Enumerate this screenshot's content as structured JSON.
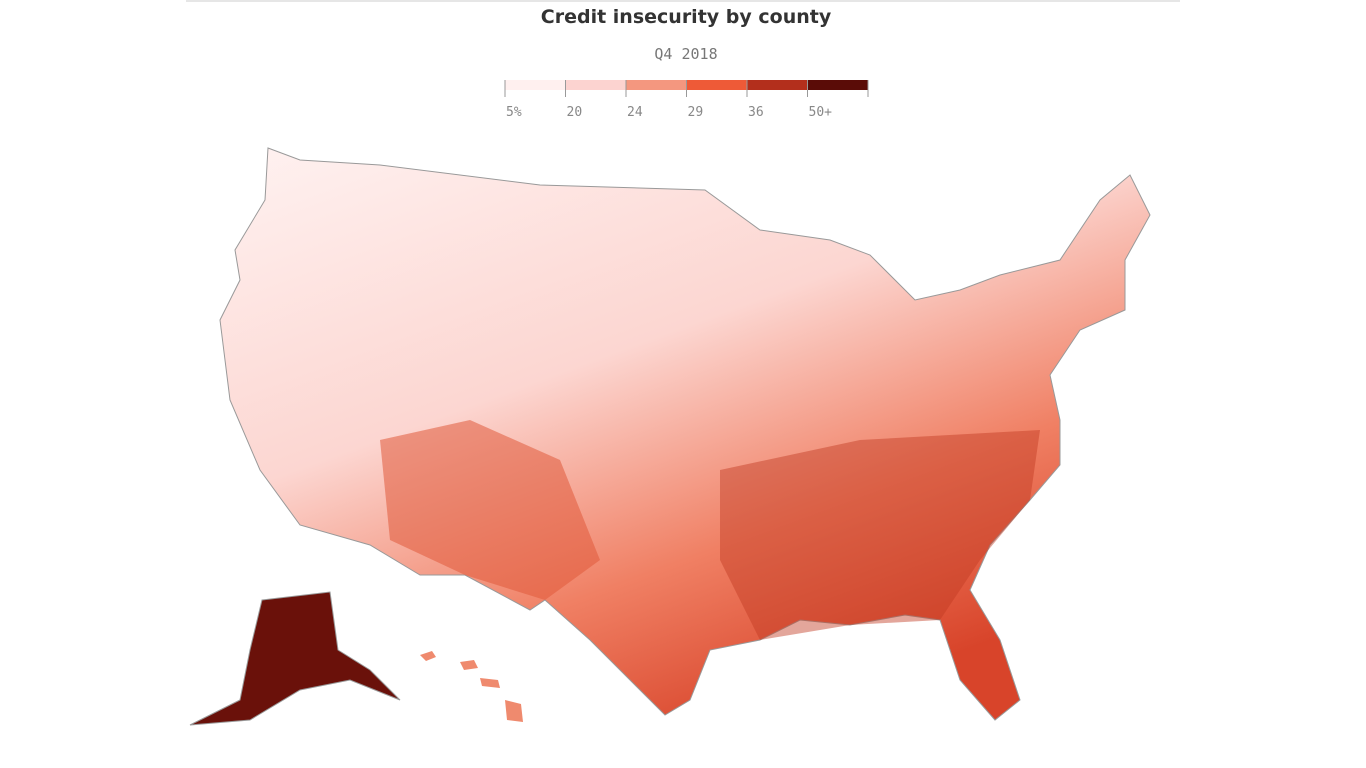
{
  "header": {
    "title": "Credit insecurity by county",
    "subtitle": "Q4 2018"
  },
  "legend": {
    "ticks": [
      {
        "value": 5,
        "label": "5%"
      },
      20,
      24,
      29,
      36,
      {
        "value": 50,
        "label": "50+"
      }
    ],
    "colors": [
      "#fff0ef",
      "#fcd3d0",
      "#f4977f",
      "#ee5a37",
      "#b32f1c",
      "#5a0c07"
    ]
  }
}
